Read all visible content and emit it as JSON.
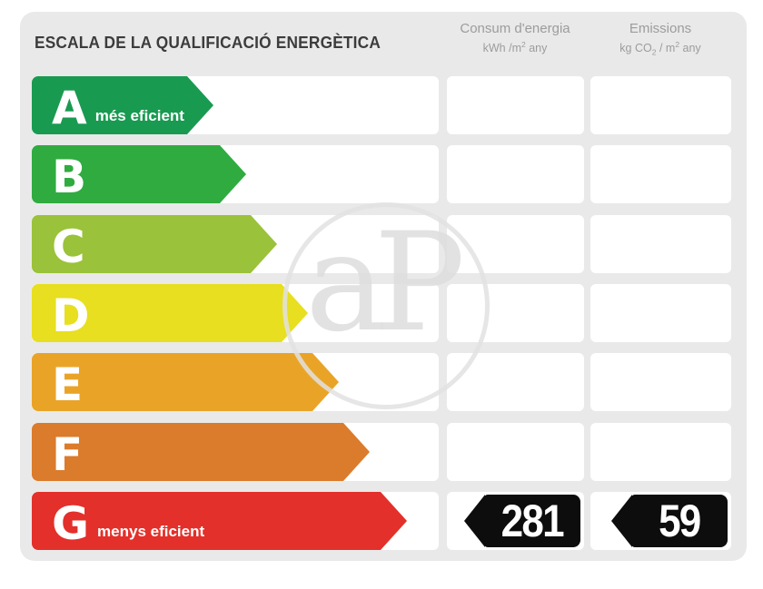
{
  "title": "ESCALA DE LA QUALIFICACIÓ ENERGÈTICA",
  "columns": {
    "consumption": {
      "title": "Consum d'energia",
      "unit_main": "kWh /m",
      "unit_sup": "2",
      "unit_tail": " any"
    },
    "emissions": {
      "title": "Emissions",
      "unit_main": "kg CO",
      "unit_sub": "2",
      "unit_mid": " / m",
      "unit_sup": "2",
      "unit_tail": " any"
    }
  },
  "ratings": [
    {
      "letter": "A",
      "label": "més eficient",
      "color": "#199a51",
      "arrow_length": 200
    },
    {
      "letter": "B",
      "label": "",
      "color": "#30ab40",
      "arrow_length": 236
    },
    {
      "letter": "C",
      "label": "",
      "color": "#9ac23a",
      "arrow_length": 270
    },
    {
      "letter": "D",
      "label": "",
      "color": "#e7df1f",
      "arrow_length": 304
    },
    {
      "letter": "E",
      "label": "",
      "color": "#e9a428",
      "arrow_length": 338
    },
    {
      "letter": "F",
      "label": "",
      "color": "#db7b2c",
      "arrow_length": 372
    },
    {
      "letter": "G",
      "label": "menys eficient",
      "color": "#e3302a",
      "arrow_length": 413
    }
  ],
  "result": {
    "rating": "G",
    "consumption": "281",
    "emissions": "59"
  },
  "watermark": "aP",
  "colors": {
    "panel_bg": "#e9e9e9",
    "cell_bg": "#ffffff",
    "badge_bg": "#0d0d0d",
    "title_text": "#3c3c3c",
    "header_text": "#9c9c9c"
  },
  "chart_data": {
    "type": "bar",
    "title": "ESCALA DE LA QUALIFICACIÓ ENERGÈTICA",
    "categories": [
      "A",
      "B",
      "C",
      "D",
      "E",
      "F",
      "G"
    ],
    "series": [
      {
        "name": "Consum d'energia (kWh/m2 any)",
        "values": [
          null,
          null,
          null,
          null,
          null,
          null,
          281
        ]
      },
      {
        "name": "Emissions (kg CO2/m2 any)",
        "values": [
          null,
          null,
          null,
          null,
          null,
          null,
          59
        ]
      }
    ],
    "annotations": [
      "A = més eficient",
      "G = menys eficient",
      "rated band: G"
    ],
    "legend_position": "top",
    "grid": false
  }
}
